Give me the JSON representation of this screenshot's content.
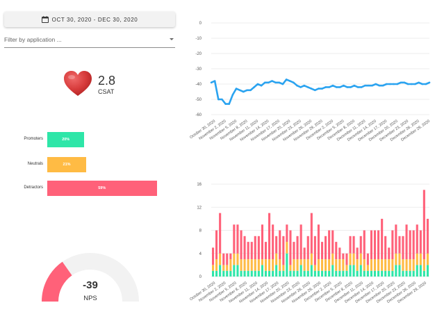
{
  "date_range": {
    "label": "OCT 30, 2020 - DEC 30, 2020"
  },
  "filter": {
    "placeholder": "Filter by application ..."
  },
  "csat": {
    "value": "2.8",
    "label": "CSAT"
  },
  "nps_breakdown": {
    "rows": [
      {
        "label": "Promoters",
        "percent_label": "20%",
        "percent": 20,
        "color": "#2ee6a8"
      },
      {
        "label": "Neutrals",
        "percent_label": "21%",
        "percent": 21,
        "color": "#ffbb44"
      },
      {
        "label": "Detractors",
        "percent_label": "59%",
        "percent": 59,
        "color": "#ff6179"
      }
    ]
  },
  "nps": {
    "value": "-39",
    "label": "NPS",
    "score": -39,
    "track_color": "#f2f2f2",
    "fill_color": "#ff6179"
  },
  "chart_data": [
    {
      "type": "line",
      "title": "",
      "ylim": [
        -60,
        0
      ],
      "yticks": [
        0,
        -10,
        -20,
        -30,
        -40,
        -50,
        -60
      ],
      "color": "#2aa3f0",
      "x": [
        "October 30, 2020",
        "October 31, 2020",
        "November 1, 2020",
        "November 2, 2020",
        "November 3, 2020",
        "November 4, 2020",
        "November 5, 2020",
        "November 6, 2020",
        "November 7, 2020",
        "November 8, 2020",
        "November 9, 2020",
        "November 10, 2020",
        "November 11, 2020",
        "November 12, 2020",
        "November 13, 2020",
        "November 14, 2020",
        "November 15, 2020",
        "November 16, 2020",
        "November 17, 2020",
        "November 18, 2020",
        "November 19, 2020",
        "November 20, 2020",
        "November 21, 2020",
        "November 22, 2020",
        "November 23, 2020",
        "November 24, 2020",
        "November 25, 2020",
        "November 26, 2020",
        "November 27, 2020",
        "November 28, 2020",
        "November 29, 2020",
        "November 30, 2020",
        "December 1, 2020",
        "December 2, 2020",
        "December 3, 2020",
        "December 4, 2020",
        "December 5, 2020",
        "December 6, 2020",
        "December 7, 2020",
        "December 8, 2020",
        "December 9, 2020",
        "December 10, 2020",
        "December 11, 2020",
        "December 12, 2020",
        "December 13, 2020",
        "December 14, 2020",
        "December 15, 2020",
        "December 16, 2020",
        "December 17, 2020",
        "December 18, 2020",
        "December 19, 2020",
        "December 20, 2020",
        "December 21, 2020",
        "December 22, 2020",
        "December 23, 2020",
        "December 24, 2020",
        "December 25, 2020",
        "December 26, 2020",
        "December 27, 2020",
        "December 28, 2020",
        "December 29, 2020",
        "December 30, 2020"
      ],
      "tick_labels": [
        "October 30, 2020",
        "November 2, 2020",
        "November 5, 2020",
        "November 8, 2020",
        "November 11, 2020",
        "November 14, 2020",
        "November 17, 2020",
        "November 20, 2020",
        "November 23, 2020",
        "November 26, 2020",
        "November 29, 2020",
        "December 2, 2020",
        "December 5, 2020",
        "December 8, 2020",
        "December 11, 2020",
        "December 14, 2020",
        "December 17, 2020",
        "December 20, 2020",
        "December 23, 2020",
        "December 26, 2020",
        "December 29, 2020"
      ],
      "values": [
        -39,
        -38,
        -50,
        -50,
        -53,
        -53,
        -47,
        -43,
        -44,
        -45,
        -44,
        -44,
        -42,
        -40,
        -41,
        -39,
        -39,
        -38,
        -39,
        -39,
        -40,
        -37,
        -38,
        -39,
        -41,
        -42,
        -41,
        -42,
        -43,
        -44,
        -43,
        -43,
        -42,
        -42,
        -41,
        -42,
        -42,
        -41,
        -42,
        -42,
        -41,
        -42,
        -42,
        -41,
        -41,
        -41,
        -40,
        -41,
        -41,
        -40,
        -40,
        -40,
        -40,
        -39,
        -39,
        -40,
        -40,
        -40,
        -39,
        -40,
        -40,
        -39
      ]
    },
    {
      "type": "bar",
      "stacked": true,
      "title": "",
      "ylim": [
        0,
        16
      ],
      "yticks": [
        0,
        4,
        8,
        12,
        16
      ],
      "tick_labels": [
        "October 30, 2020",
        "November 2, 2020",
        "November 5, 2020",
        "November 8, 2020",
        "November 11, 2020",
        "November 14, 2020",
        "November 17, 2020",
        "November 20, 2020",
        "November 23, 2020",
        "November 26, 2020",
        "November 29, 2020",
        "December 2, 2020",
        "December 5, 2020",
        "December 8, 2020",
        "December 11, 2020",
        "December 14, 2020",
        "December 17, 2020",
        "December 20, 2020",
        "December 23, 2020",
        "December 26, 2020",
        "December 29, 2020"
      ],
      "series": [
        {
          "name": "Promoters",
          "color": "#2ee6a8",
          "values": [
            1,
            1,
            2,
            1,
            1,
            1,
            2,
            2,
            1,
            1,
            1,
            1,
            1,
            1,
            2,
            1,
            1,
            1,
            2,
            1,
            1,
            4,
            1,
            1,
            1,
            2,
            1,
            1,
            2,
            1,
            1,
            1,
            1,
            1,
            2,
            1,
            1,
            1,
            1,
            2,
            2,
            1,
            2,
            1,
            1,
            1,
            1,
            1,
            1,
            1,
            1,
            1,
            2,
            2,
            1,
            1,
            1,
            1,
            2,
            2,
            1,
            2
          ]
        },
        {
          "name": "Neutrals",
          "color": "#ffbb44",
          "values": [
            1,
            2,
            2,
            1,
            1,
            2,
            2,
            2,
            2,
            2,
            2,
            2,
            2,
            2,
            1,
            2,
            2,
            2,
            2,
            2,
            1,
            2,
            1,
            2,
            2,
            1,
            2,
            2,
            2,
            1,
            2,
            2,
            2,
            2,
            2,
            2,
            2,
            2,
            1,
            2,
            2,
            2,
            2,
            2,
            1,
            2,
            2,
            2,
            2,
            2,
            2,
            2,
            2,
            2,
            2,
            2,
            2,
            2,
            2,
            2,
            2,
            2
          ]
        },
        {
          "name": "Detractors",
          "color": "#ff6179",
          "values": [
            3,
            5,
            7,
            2,
            2,
            1,
            5,
            5,
            5,
            4,
            3,
            3,
            4,
            4,
            6,
            3,
            8,
            6,
            3,
            5,
            5,
            3,
            6,
            3,
            4,
            6,
            2,
            4,
            7,
            5,
            6,
            3,
            4,
            5,
            4,
            3,
            2,
            1,
            2,
            3,
            3,
            2,
            3,
            5,
            2,
            5,
            5,
            5,
            7,
            4,
            2,
            5,
            5,
            3,
            4,
            6,
            5,
            5,
            5,
            4,
            12,
            6
          ]
        }
      ]
    }
  ]
}
